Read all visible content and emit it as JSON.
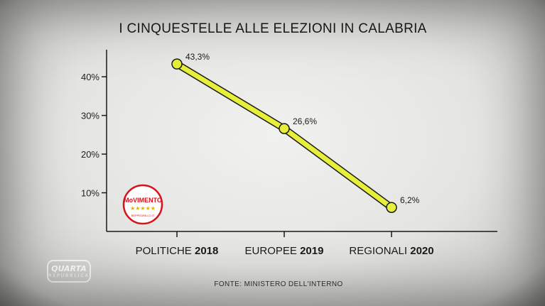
{
  "chart_data": {
    "type": "line",
    "title": "I CINQUESTELLE ALLE ELEZIONI IN CALABRIA",
    "categories_prefix": [
      "POLITICHE",
      "EUROPEE",
      "REGIONALI"
    ],
    "categories_year": [
      "2018",
      "2019",
      "2020"
    ],
    "categories": [
      "POLITICHE 2018",
      "EUROPEE 2019",
      "REGIONALI 2020"
    ],
    "values": [
      43.3,
      26.6,
      6.2
    ],
    "value_labels": [
      "43,3%",
      "26,6%",
      "6,2%"
    ],
    "yticks": [
      10,
      20,
      30,
      40
    ],
    "ytick_labels": [
      "10%",
      "20%",
      "30%",
      "40%"
    ],
    "ylim": [
      0,
      47
    ],
    "line_color": "#e6f03a",
    "marker_color": "#e6f03a",
    "axis_color": "#1a1a1a"
  },
  "source": "FONTE: MINISTERO DELL'INTERNO",
  "logo": {
    "text": "MoVIMENTO",
    "subtext": "BEPPEGRILLO.IT",
    "stars": "★★★★★",
    "accent_color": "#d6131b"
  },
  "broadcaster": {
    "name": "QUARTA",
    "sub": "REPUBBLICA"
  }
}
